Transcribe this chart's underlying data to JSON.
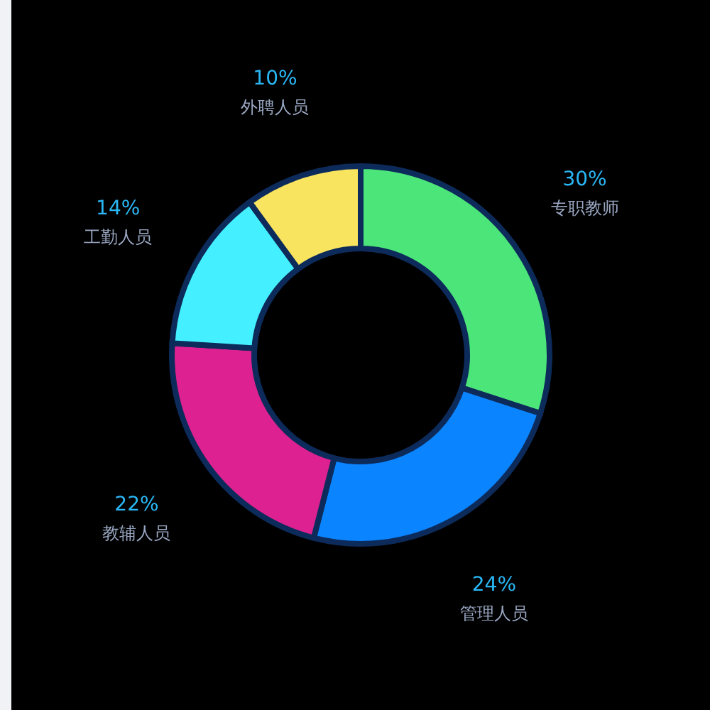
{
  "chart_data": {
    "type": "donut",
    "categories": [
      "专职教师",
      "管理人员",
      "教辅人员",
      "工勤人员",
      "外聘人员"
    ],
    "values": [
      30,
      24,
      22,
      14,
      10
    ],
    "colors": [
      "#4ce57a",
      "#0a84ff",
      "#dd2190",
      "#44f0ff",
      "#f9e45f"
    ],
    "value_labels": [
      "30%",
      "24%",
      "22%",
      "14%",
      "10%"
    ]
  }
}
